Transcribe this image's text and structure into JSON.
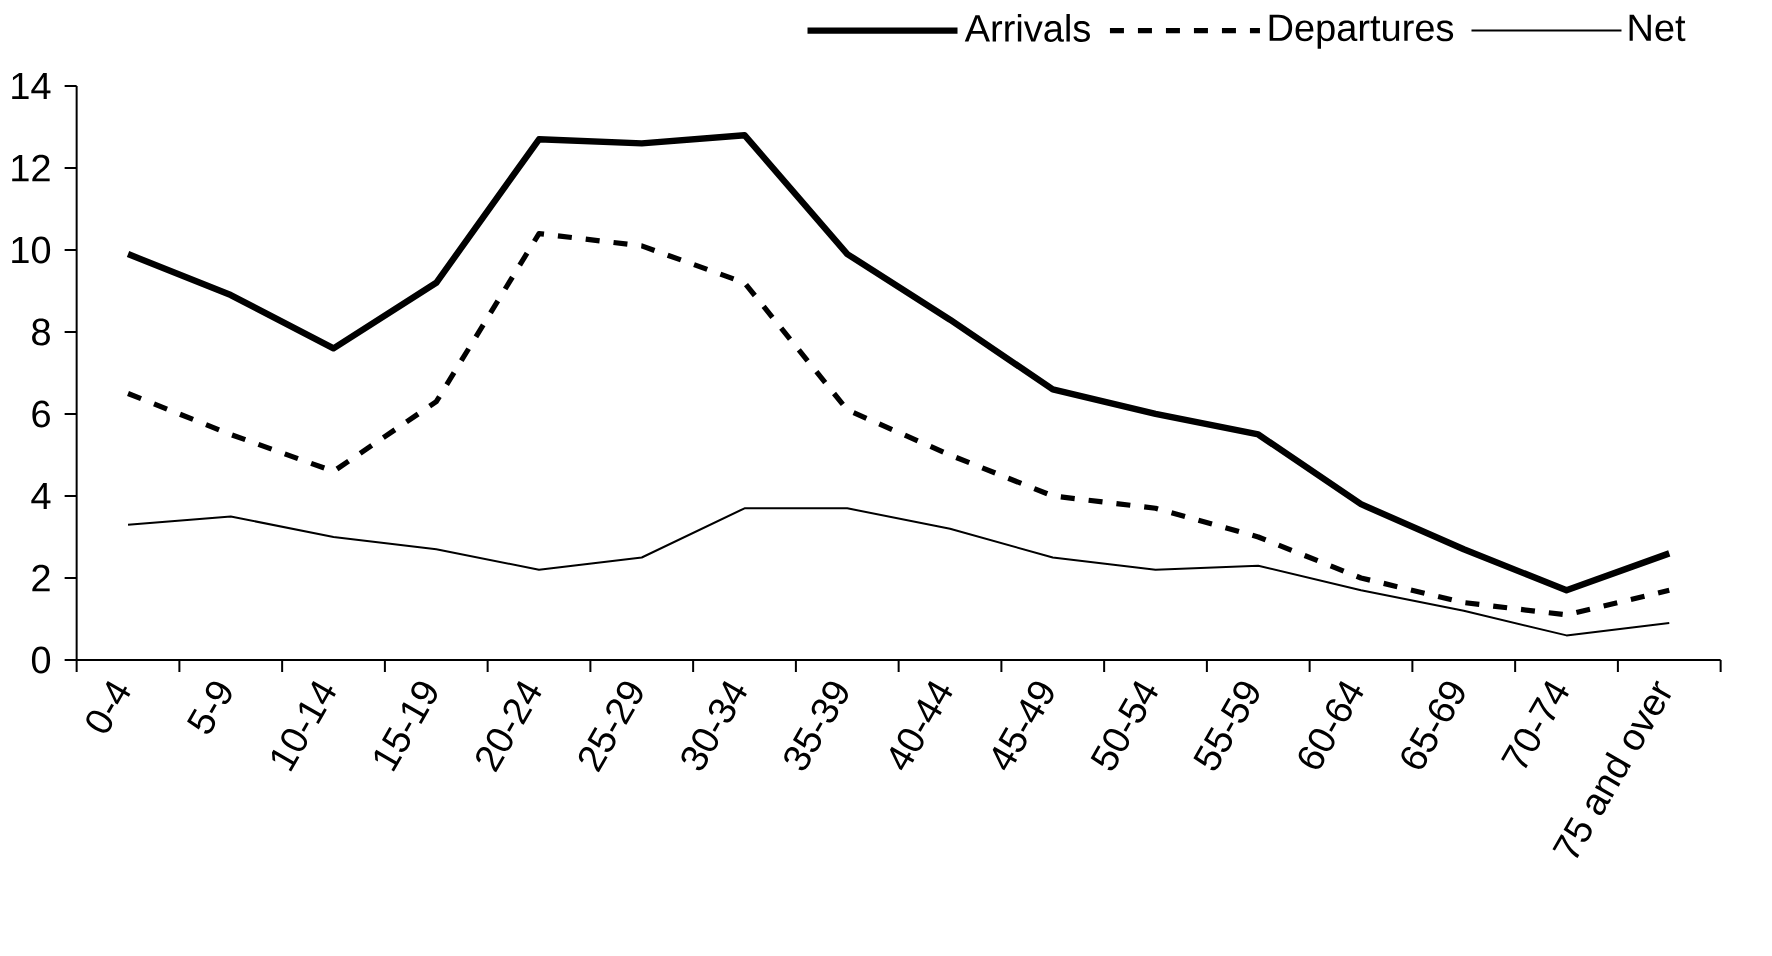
{
  "chart_data": {
    "type": "line",
    "categories": [
      "0-4",
      "5-9",
      "10-14",
      "15-19",
      "20-24",
      "25-29",
      "30-34",
      "35-39",
      "40-44",
      "45-49",
      "50-54",
      "55-59",
      "60-64",
      "65-69",
      "70-74",
      "75 and over"
    ],
    "series": [
      {
        "name": "Arrivals",
        "color": "#000000",
        "line_style": "solid",
        "values": [
          9.9,
          8.9,
          7.6,
          9.2,
          12.7,
          12.6,
          12.8,
          9.9,
          8.3,
          6.6,
          6.0,
          5.5,
          3.8,
          2.7,
          1.7,
          2.6
        ]
      },
      {
        "name": "Departures",
        "color": "#000000",
        "line_style": "dashed",
        "values": [
          6.5,
          5.5,
          4.6,
          6.3,
          10.4,
          10.1,
          9.2,
          6.1,
          5.0,
          4.0,
          3.7,
          3.0,
          2.0,
          1.4,
          1.1,
          1.7
        ]
      },
      {
        "name": "Net",
        "color": "#000000",
        "line_style": "solid",
        "values": [
          3.3,
          3.5,
          3.0,
          2.7,
          2.2,
          2.5,
          3.7,
          3.7,
          3.2,
          2.5,
          2.2,
          2.3,
          1.7,
          1.2,
          0.6,
          0.9
        ]
      }
    ],
    "ylim": [
      0,
      14
    ],
    "yticks": [
      0,
      2,
      4,
      6,
      8,
      10,
      12,
      14
    ],
    "grid": false,
    "legend": "top right",
    "marker": "none"
  }
}
